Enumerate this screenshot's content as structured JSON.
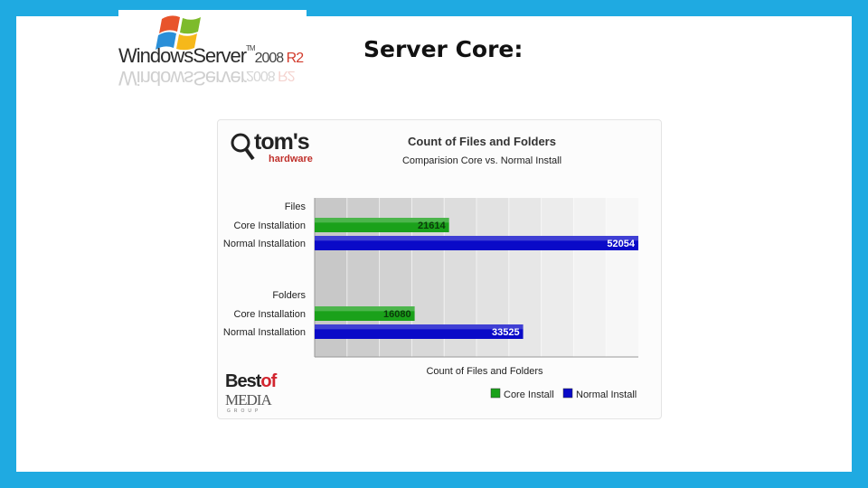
{
  "slide": {
    "title": "Server Core:"
  },
  "logo": {
    "windows": "Windows",
    "server": "Server",
    "tm": "TM",
    "version": "2008",
    "release": "R2"
  },
  "chart_brand": {
    "name": "tom's",
    "sub": "hardware",
    "footer_best": "Best",
    "footer_of": "of",
    "footer_media": "MEDIA",
    "footer_group": "GROUP"
  },
  "chart_data": {
    "type": "bar",
    "orientation": "horizontal",
    "title": "Count of Files and Folders",
    "subtitle": "Comparision Core vs. Normal Install",
    "xlabel": "Count of Files and Folders",
    "groups": [
      {
        "label": "Files",
        "rows": [
          {
            "label": "Core Installation",
            "series": "Core Install",
            "value": 21614
          },
          {
            "label": "Normal Installation",
            "series": "Normal Install",
            "value": 52054
          }
        ]
      },
      {
        "label": "Folders",
        "rows": [
          {
            "label": "Core Installation",
            "series": "Core Install",
            "value": 16080
          },
          {
            "label": "Normal Installation",
            "series": "Normal Install",
            "value": 33525
          }
        ]
      }
    ],
    "series": [
      {
        "name": "Core Install",
        "color": "#1aa11a"
      },
      {
        "name": "Normal Install",
        "color": "#0a0ac8"
      }
    ],
    "xlim": [
      0,
      52054
    ],
    "grid": true,
    "legend": "bottom-right"
  }
}
